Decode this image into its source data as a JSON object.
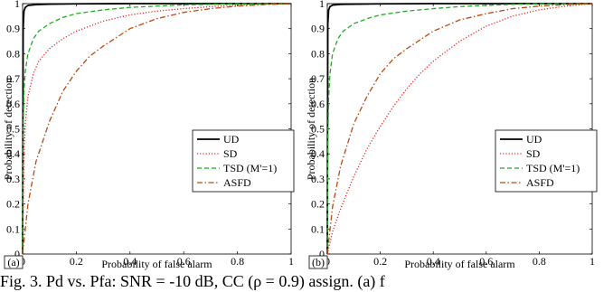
{
  "caption": "Fig. 3. Pd vs. Pfa: SNR = -10 dB, CC (ρ = 0.9) assign. (a) f",
  "chart_data": [
    {
      "type": "line",
      "panel_label": "(a)",
      "xlabel": "Probability of false alarm",
      "ylabel": "Probability of detection",
      "xlim": [
        0,
        1
      ],
      "ylim": [
        0,
        1
      ],
      "xticks": [
        "0",
        "0.2",
        "0.4",
        "0.6",
        "0.8",
        "1"
      ],
      "yticks": [
        "0",
        "0.1",
        "0.2",
        "0.3",
        "0.4",
        "0.5",
        "0.6",
        "0.7",
        "0.8",
        "0.9",
        "1"
      ],
      "grid": false,
      "legend": "center-right",
      "series": [
        {
          "name": "UD",
          "color": "#000000",
          "dash": "solid",
          "x": [
            0,
            0.002,
            0.005,
            0.01,
            0.02,
            0.05,
            0.1,
            0.2,
            0.4,
            0.6,
            0.8,
            1
          ],
          "y": [
            0,
            0.9,
            0.97,
            0.985,
            0.993,
            0.996,
            0.998,
            0.999,
            1,
            1,
            1,
            1
          ]
        },
        {
          "name": "SD",
          "color": "#ee2222",
          "dash": "dotted",
          "x": [
            0,
            0.005,
            0.01,
            0.02,
            0.04,
            0.06,
            0.1,
            0.15,
            0.2,
            0.3,
            0.4,
            0.5,
            0.6,
            0.7,
            0.8,
            0.9,
            1
          ],
          "y": [
            0,
            0.4,
            0.52,
            0.63,
            0.72,
            0.77,
            0.82,
            0.86,
            0.89,
            0.93,
            0.955,
            0.97,
            0.98,
            0.988,
            0.994,
            0.998,
            1
          ]
        },
        {
          "name": "TSD (M'=1)",
          "color": "#22aa22",
          "dash": "dashed",
          "x": [
            0,
            0.002,
            0.005,
            0.01,
            0.02,
            0.04,
            0.06,
            0.1,
            0.15,
            0.2,
            0.3,
            0.4,
            0.5,
            0.6,
            0.7,
            0.8,
            1
          ],
          "y": [
            0,
            0.5,
            0.65,
            0.73,
            0.8,
            0.86,
            0.89,
            0.92,
            0.945,
            0.96,
            0.975,
            0.985,
            0.99,
            0.995,
            0.997,
            0.999,
            1
          ]
        },
        {
          "name": "ASFD",
          "color": "#bb4a10",
          "dash": "dashdot",
          "x": [
            0,
            0.02,
            0.05,
            0.1,
            0.15,
            0.2,
            0.25,
            0.3,
            0.4,
            0.5,
            0.6,
            0.7,
            0.8,
            0.9,
            1
          ],
          "y": [
            0,
            0.2,
            0.37,
            0.53,
            0.65,
            0.73,
            0.79,
            0.83,
            0.9,
            0.94,
            0.965,
            0.98,
            0.99,
            0.996,
            1
          ]
        }
      ]
    },
    {
      "type": "line",
      "panel_label": "(b)",
      "xlabel": "Probability of false alarm",
      "ylabel": "Probability of detection",
      "xlim": [
        0,
        1
      ],
      "ylim": [
        0,
        1
      ],
      "xticks": [
        "0",
        "0.2",
        "0.4",
        "0.6",
        "0.8",
        "1"
      ],
      "yticks": [
        "0",
        "0.1",
        "0.2",
        "0.3",
        "0.4",
        "0.5",
        "0.6",
        "0.7",
        "0.8",
        "0.9",
        "1"
      ],
      "grid": false,
      "legend": "center-right",
      "series": [
        {
          "name": "UD",
          "color": "#000000",
          "dash": "solid",
          "x": [
            0,
            0.002,
            0.005,
            0.01,
            0.02,
            0.05,
            0.1,
            0.2,
            0.4,
            0.6,
            0.8,
            1
          ],
          "y": [
            0,
            0.92,
            0.975,
            0.988,
            0.994,
            0.997,
            0.998,
            0.999,
            1,
            1,
            1,
            1
          ]
        },
        {
          "name": "SD",
          "color": "#ee2222",
          "dash": "dotted",
          "x": [
            0,
            0.02,
            0.05,
            0.1,
            0.15,
            0.2,
            0.25,
            0.3,
            0.35,
            0.4,
            0.5,
            0.6,
            0.7,
            0.8,
            0.9,
            1
          ],
          "y": [
            0,
            0.09,
            0.18,
            0.31,
            0.42,
            0.51,
            0.59,
            0.66,
            0.72,
            0.77,
            0.85,
            0.91,
            0.95,
            0.975,
            0.99,
            1
          ]
        },
        {
          "name": "TSD (M'=1)",
          "color": "#22aa22",
          "dash": "dashed",
          "x": [
            0,
            0.002,
            0.005,
            0.01,
            0.02,
            0.04,
            0.06,
            0.1,
            0.15,
            0.2,
            0.3,
            0.4,
            0.5,
            0.6,
            0.7,
            0.8,
            1
          ],
          "y": [
            0,
            0.45,
            0.62,
            0.72,
            0.8,
            0.86,
            0.89,
            0.92,
            0.94,
            0.955,
            0.97,
            0.98,
            0.988,
            0.993,
            0.997,
            0.999,
            1
          ]
        },
        {
          "name": "ASFD",
          "color": "#bb4a10",
          "dash": "dashdot",
          "x": [
            0,
            0.02,
            0.05,
            0.1,
            0.15,
            0.2,
            0.25,
            0.3,
            0.4,
            0.5,
            0.6,
            0.7,
            0.8,
            0.9,
            1
          ],
          "y": [
            0,
            0.19,
            0.35,
            0.52,
            0.63,
            0.72,
            0.78,
            0.82,
            0.89,
            0.935,
            0.96,
            0.98,
            0.99,
            0.996,
            1
          ]
        }
      ]
    }
  ]
}
